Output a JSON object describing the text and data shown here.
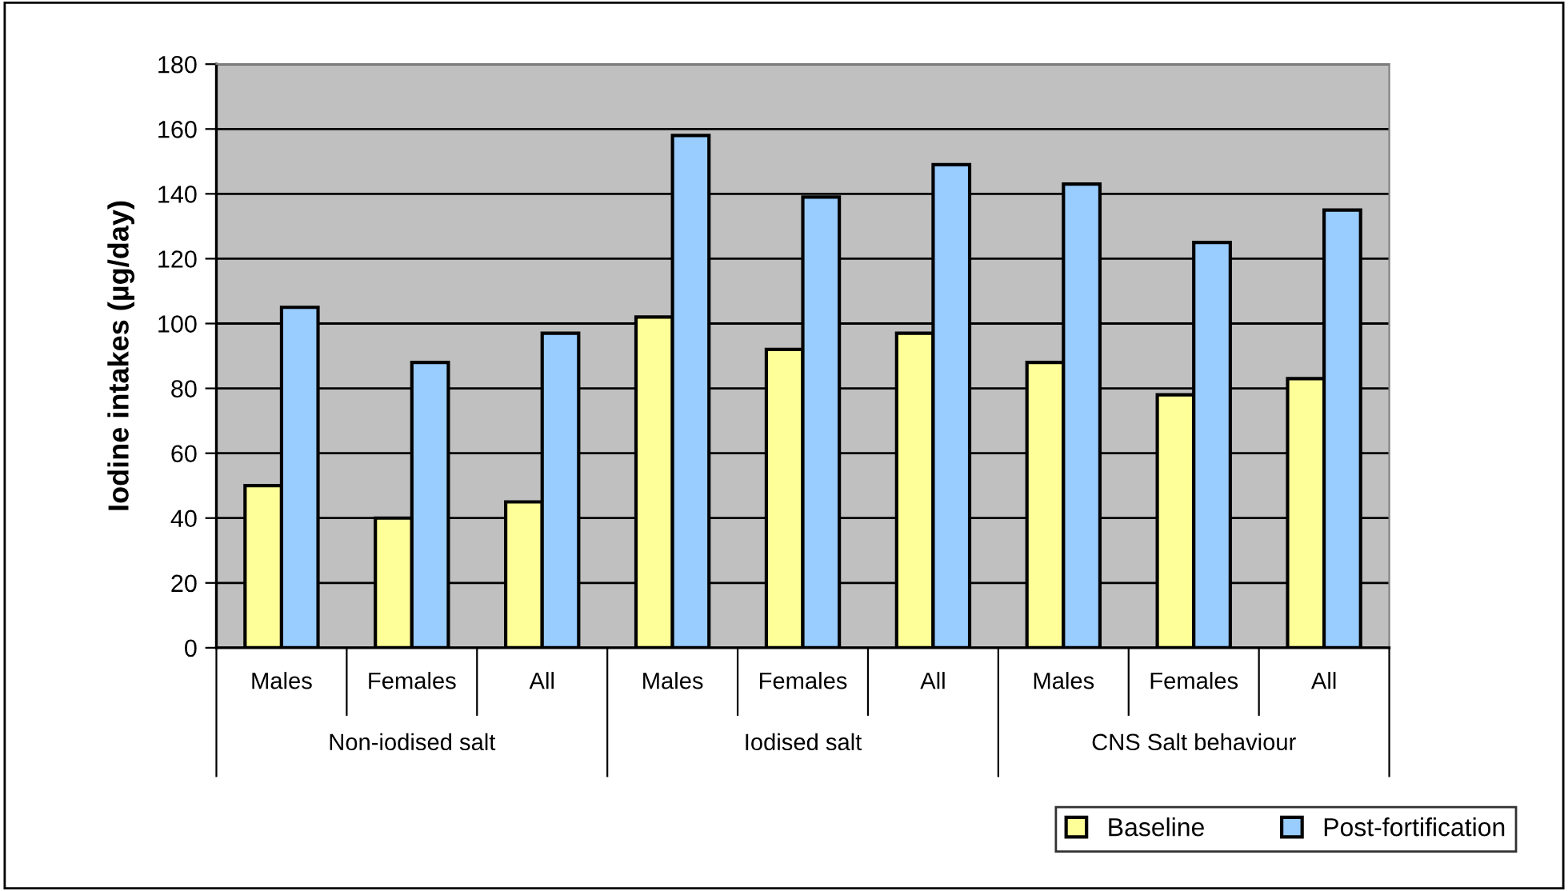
{
  "chart_data": {
    "type": "bar",
    "ylabel": "Iodine intakes (µg/day)",
    "categories": [
      "Males",
      "Females",
      "All",
      "Males",
      "Females",
      "All",
      "Males",
      "Females",
      "All"
    ],
    "series": [
      {
        "name": "Baseline",
        "color": "#ffff99",
        "values": [
          50,
          40,
          45,
          102,
          92,
          97,
          88,
          78,
          83
        ]
      },
      {
        "name": "Post-fortification",
        "color": "#99ccff",
        "values": [
          105,
          88,
          97,
          158,
          139,
          149,
          143,
          125,
          135
        ]
      }
    ],
    "annotations": [
      "Non-iodised salt",
      "Iodised salt",
      "CNS Salt behaviour"
    ],
    "ylim": [
      0,
      180
    ],
    "yticks": [
      0,
      20,
      40,
      60,
      80,
      100,
      120,
      140,
      160,
      180
    ],
    "grid": "y",
    "legend": "bottom right"
  }
}
